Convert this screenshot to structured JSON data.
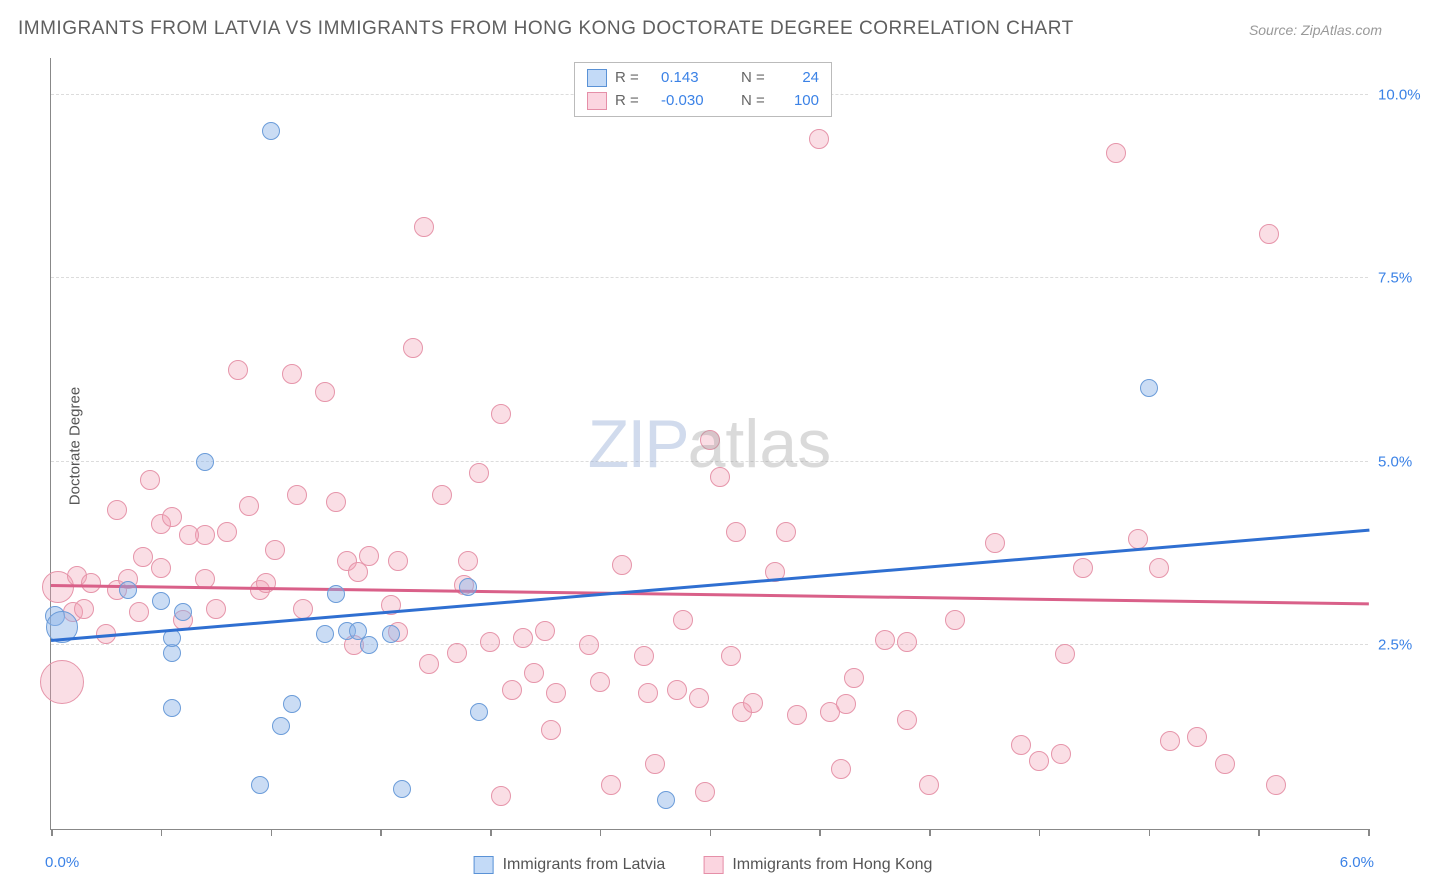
{
  "title": "IMMIGRANTS FROM LATVIA VS IMMIGRANTS FROM HONG KONG DOCTORATE DEGREE CORRELATION CHART",
  "source": "Source: ZipAtlas.com",
  "y_axis_label": "Doctorate Degree",
  "x_range": [
    0.0,
    6.0
  ],
  "y_range": [
    0.0,
    10.5
  ],
  "y_gridlines": [
    2.5,
    5.0,
    7.5,
    10.0
  ],
  "y_tick_labels": [
    "2.5%",
    "5.0%",
    "7.5%",
    "10.0%"
  ],
  "x_tick_positions": [
    0.0,
    3.0,
    6.0
  ],
  "x_tick_labels": [
    "0.0%",
    "",
    "6.0%"
  ],
  "x_minor_ticks": [
    0.0,
    0.5,
    1.0,
    1.5,
    2.0,
    2.5,
    3.0,
    3.5,
    4.0,
    4.5,
    5.0,
    5.5,
    6.0
  ],
  "legend_top": [
    {
      "color_fill": "#c3daf7",
      "color_border": "#5a92d6",
      "r": "0.143",
      "n": "24"
    },
    {
      "color_fill": "#fbd5e0",
      "color_border": "#e58fa8",
      "r": "-0.030",
      "n": "100"
    }
  ],
  "legend_bottom": [
    {
      "label": "Immigrants from Latvia",
      "fill": "#c3daf7",
      "border": "#5a92d6"
    },
    {
      "label": "Immigrants from Hong Kong",
      "fill": "#fbd5e0",
      "border": "#e58fa8"
    }
  ],
  "series_latvia": {
    "color_fill": "rgba(137, 178, 230, 0.45)",
    "color_border": "#6b9cd9",
    "marker_radius": 9,
    "trend": {
      "x1": 0.0,
      "y1": 2.6,
      "x2": 6.0,
      "y2": 4.1,
      "color": "#2f6fd1"
    },
    "points": [
      {
        "x": 0.02,
        "y": 2.9,
        "r": 10
      },
      {
        "x": 0.05,
        "y": 2.75,
        "r": 16
      },
      {
        "x": 0.5,
        "y": 3.1
      },
      {
        "x": 0.55,
        "y": 2.4
      },
      {
        "x": 0.55,
        "y": 2.6
      },
      {
        "x": 0.7,
        "y": 5.0
      },
      {
        "x": 1.0,
        "y": 9.5
      },
      {
        "x": 0.55,
        "y": 1.65
      },
      {
        "x": 1.05,
        "y": 1.4
      },
      {
        "x": 1.1,
        "y": 1.7
      },
      {
        "x": 1.25,
        "y": 2.65
      },
      {
        "x": 0.95,
        "y": 0.6
      },
      {
        "x": 1.35,
        "y": 2.7
      },
      {
        "x": 1.4,
        "y": 2.7
      },
      {
        "x": 1.55,
        "y": 2.65
      },
      {
        "x": 1.6,
        "y": 0.55
      },
      {
        "x": 1.9,
        "y": 3.3
      },
      {
        "x": 1.95,
        "y": 1.6
      },
      {
        "x": 2.8,
        "y": 0.4
      },
      {
        "x": 5.0,
        "y": 6.0
      },
      {
        "x": 1.3,
        "y": 3.2
      },
      {
        "x": 1.45,
        "y": 2.5
      },
      {
        "x": 0.35,
        "y": 3.25
      },
      {
        "x": 0.6,
        "y": 2.95
      }
    ]
  },
  "series_hk": {
    "color_fill": "rgba(240, 160, 180, 0.35)",
    "color_border": "#e695aa",
    "marker_radius": 10,
    "trend": {
      "x1": 0.0,
      "y1": 3.35,
      "x2": 6.0,
      "y2": 3.1,
      "color": "#d96089"
    },
    "points": [
      {
        "x": 0.03,
        "y": 3.3,
        "r": 16
      },
      {
        "x": 0.05,
        "y": 2.0,
        "r": 22
      },
      {
        "x": 0.1,
        "y": 2.95
      },
      {
        "x": 0.12,
        "y": 3.45
      },
      {
        "x": 0.15,
        "y": 3.0
      },
      {
        "x": 0.18,
        "y": 3.35
      },
      {
        "x": 0.3,
        "y": 3.25
      },
      {
        "x": 0.3,
        "y": 4.35
      },
      {
        "x": 0.35,
        "y": 3.4
      },
      {
        "x": 0.4,
        "y": 2.95
      },
      {
        "x": 0.45,
        "y": 4.75
      },
      {
        "x": 0.5,
        "y": 3.55
      },
      {
        "x": 0.5,
        "y": 4.15
      },
      {
        "x": 0.55,
        "y": 4.25
      },
      {
        "x": 0.6,
        "y": 2.85
      },
      {
        "x": 0.7,
        "y": 4.0
      },
      {
        "x": 0.7,
        "y": 3.4
      },
      {
        "x": 0.75,
        "y": 3.0
      },
      {
        "x": 0.8,
        "y": 4.05
      },
      {
        "x": 0.85,
        "y": 6.25
      },
      {
        "x": 0.9,
        "y": 4.4
      },
      {
        "x": 0.95,
        "y": 3.25
      },
      {
        "x": 0.98,
        "y": 3.35
      },
      {
        "x": 1.02,
        "y": 3.8
      },
      {
        "x": 1.1,
        "y": 6.2
      },
      {
        "x": 1.12,
        "y": 4.55
      },
      {
        "x": 1.15,
        "y": 3.0
      },
      {
        "x": 1.25,
        "y": 5.95
      },
      {
        "x": 1.3,
        "y": 4.45
      },
      {
        "x": 1.35,
        "y": 3.65
      },
      {
        "x": 1.38,
        "y": 2.5
      },
      {
        "x": 1.4,
        "y": 3.5
      },
      {
        "x": 1.55,
        "y": 3.05
      },
      {
        "x": 1.58,
        "y": 3.65
      },
      {
        "x": 1.65,
        "y": 6.55
      },
      {
        "x": 1.7,
        "y": 8.2
      },
      {
        "x": 1.72,
        "y": 2.25
      },
      {
        "x": 1.78,
        "y": 4.55
      },
      {
        "x": 1.85,
        "y": 2.4
      },
      {
        "x": 1.88,
        "y": 3.32
      },
      {
        "x": 1.9,
        "y": 3.65
      },
      {
        "x": 1.95,
        "y": 4.85
      },
      {
        "x": 2.0,
        "y": 2.55
      },
      {
        "x": 2.05,
        "y": 5.65
      },
      {
        "x": 2.05,
        "y": 0.45
      },
      {
        "x": 2.1,
        "y": 1.9
      },
      {
        "x": 2.15,
        "y": 2.6
      },
      {
        "x": 2.2,
        "y": 2.12
      },
      {
        "x": 2.25,
        "y": 2.7
      },
      {
        "x": 2.28,
        "y": 1.35
      },
      {
        "x": 2.3,
        "y": 1.85
      },
      {
        "x": 2.45,
        "y": 2.5
      },
      {
        "x": 2.5,
        "y": 2.0
      },
      {
        "x": 2.55,
        "y": 0.6
      },
      {
        "x": 2.6,
        "y": 3.6
      },
      {
        "x": 2.7,
        "y": 2.35
      },
      {
        "x": 2.72,
        "y": 1.85
      },
      {
        "x": 2.75,
        "y": 0.88
      },
      {
        "x": 2.85,
        "y": 1.9
      },
      {
        "x": 2.88,
        "y": 2.85
      },
      {
        "x": 2.95,
        "y": 1.78
      },
      {
        "x": 2.98,
        "y": 0.5
      },
      {
        "x": 3.0,
        "y": 5.3
      },
      {
        "x": 3.05,
        "y": 4.8
      },
      {
        "x": 3.1,
        "y": 2.35
      },
      {
        "x": 3.12,
        "y": 4.05
      },
      {
        "x": 3.15,
        "y": 1.6
      },
      {
        "x": 3.2,
        "y": 1.72
      },
      {
        "x": 3.3,
        "y": 3.5
      },
      {
        "x": 3.35,
        "y": 4.05
      },
      {
        "x": 3.4,
        "y": 1.55
      },
      {
        "x": 3.5,
        "y": 9.4
      },
      {
        "x": 3.55,
        "y": 1.6
      },
      {
        "x": 3.6,
        "y": 0.82
      },
      {
        "x": 3.62,
        "y": 1.7
      },
      {
        "x": 3.66,
        "y": 2.05
      },
      {
        "x": 3.8,
        "y": 2.58
      },
      {
        "x": 3.9,
        "y": 2.55
      },
      {
        "x": 3.9,
        "y": 1.48
      },
      {
        "x": 4.0,
        "y": 0.6
      },
      {
        "x": 4.12,
        "y": 2.85
      },
      {
        "x": 4.3,
        "y": 3.9
      },
      {
        "x": 4.42,
        "y": 1.15
      },
      {
        "x": 4.5,
        "y": 0.92
      },
      {
        "x": 4.6,
        "y": 1.02
      },
      {
        "x": 4.62,
        "y": 2.38
      },
      {
        "x": 4.7,
        "y": 3.55
      },
      {
        "x": 4.85,
        "y": 9.2
      },
      {
        "x": 4.95,
        "y": 3.95
      },
      {
        "x": 5.05,
        "y": 3.55
      },
      {
        "x": 5.1,
        "y": 1.2
      },
      {
        "x": 5.22,
        "y": 1.25
      },
      {
        "x": 5.35,
        "y": 0.88
      },
      {
        "x": 5.55,
        "y": 8.1
      },
      {
        "x": 5.58,
        "y": 0.6
      },
      {
        "x": 0.25,
        "y": 2.65
      },
      {
        "x": 0.63,
        "y": 4.0
      },
      {
        "x": 1.45,
        "y": 3.72
      },
      {
        "x": 1.58,
        "y": 2.68
      },
      {
        "x": 0.42,
        "y": 3.7
      }
    ]
  },
  "watermark": {
    "zip": "ZIP",
    "atlas": "atlas"
  }
}
